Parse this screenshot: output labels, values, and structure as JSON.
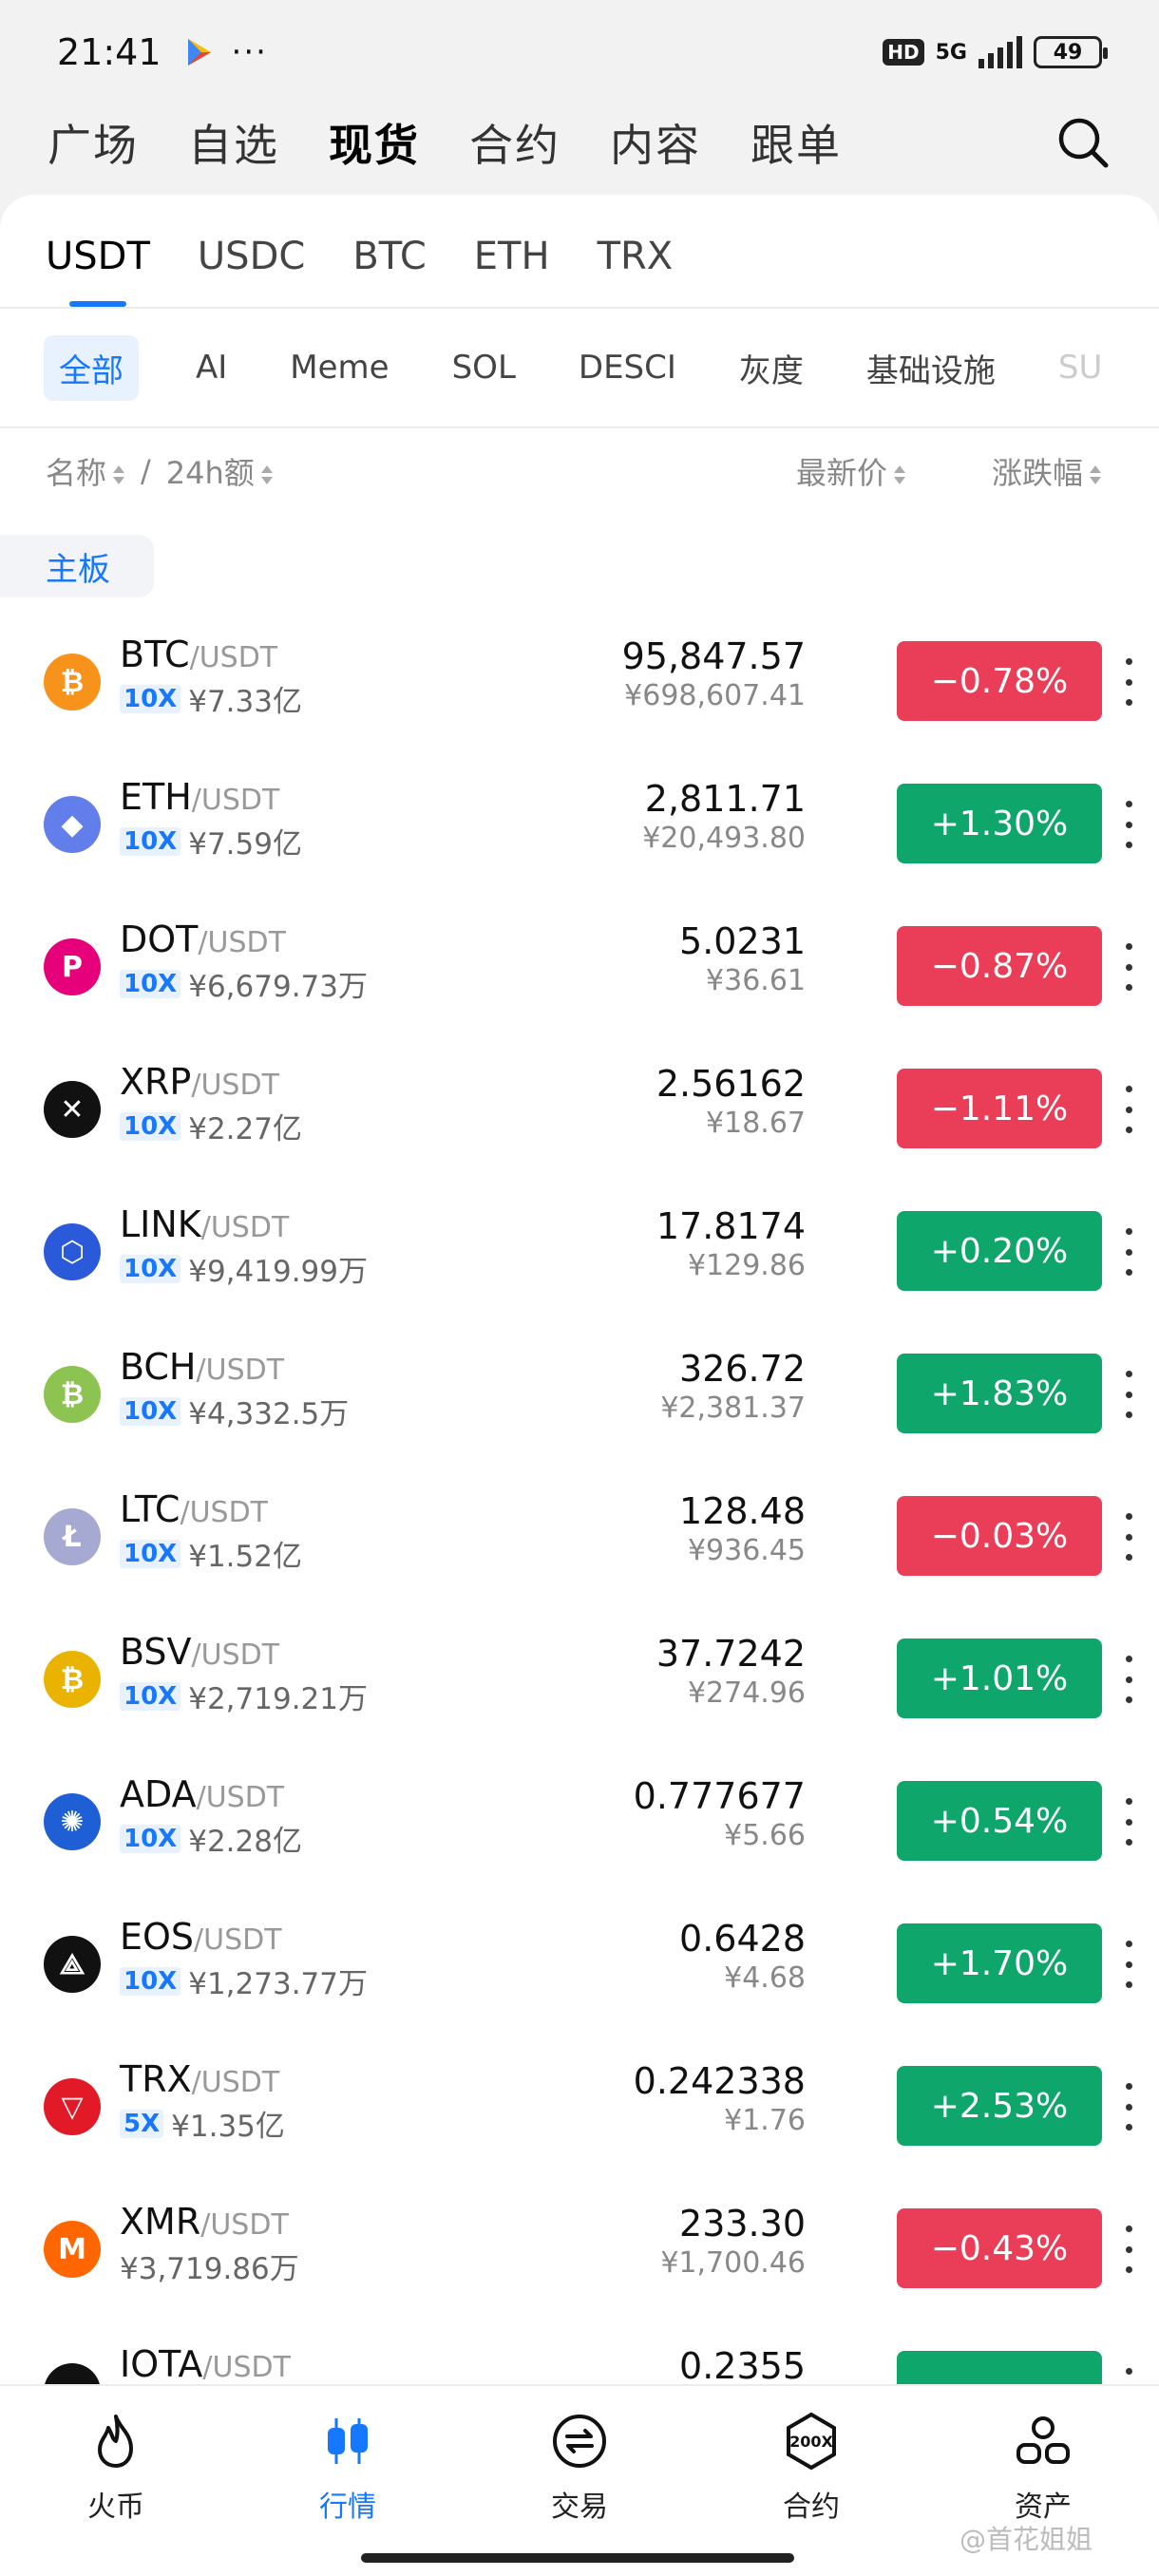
{
  "status": {
    "time": "21:41",
    "dots": "···",
    "hd": "HD",
    "network": "5G",
    "battery": "49"
  },
  "top_nav": [
    "广场",
    "自选",
    "现货",
    "合约",
    "内容",
    "跟单"
  ],
  "quote_tabs": [
    "USDT",
    "USDC",
    "BTC",
    "ETH",
    "TRX"
  ],
  "category_tabs": [
    "全部",
    "AI",
    "Meme",
    "SOL",
    "DESCI",
    "灰度",
    "基础设施",
    "SU"
  ],
  "header": {
    "name": "名称",
    "slash": "/",
    "volume": "24h额",
    "price": "最新价",
    "change": "涨跌幅"
  },
  "board_label": "主板",
  "coins": [
    {
      "symbol": "BTC",
      "quote": "/USDT",
      "leverage": "10X",
      "volume": "¥7.33亿",
      "price": "95,847.57",
      "price_cny": "¥698,607.41",
      "change": "−0.78%",
      "dir": "down",
      "icon_color": "#f7931a",
      "icon_glyph": "₿"
    },
    {
      "symbol": "ETH",
      "quote": "/USDT",
      "leverage": "10X",
      "volume": "¥7.59亿",
      "price": "2,811.71",
      "price_cny": "¥20,493.80",
      "change": "+1.30%",
      "dir": "up",
      "icon_color": "#627eea",
      "icon_glyph": "◆"
    },
    {
      "symbol": "DOT",
      "quote": "/USDT",
      "leverage": "10X",
      "volume": "¥6,679.73万",
      "price": "5.0231",
      "price_cny": "¥36.61",
      "change": "−0.87%",
      "dir": "down",
      "icon_color": "#e6007a",
      "icon_glyph": "P"
    },
    {
      "symbol": "XRP",
      "quote": "/USDT",
      "leverage": "10X",
      "volume": "¥2.27亿",
      "price": "2.56162",
      "price_cny": "¥18.67",
      "change": "−1.11%",
      "dir": "down",
      "icon_color": "#111111",
      "icon_glyph": "✕"
    },
    {
      "symbol": "LINK",
      "quote": "/USDT",
      "leverage": "10X",
      "volume": "¥9,419.99万",
      "price": "17.8174",
      "price_cny": "¥129.86",
      "change": "+0.20%",
      "dir": "up",
      "icon_color": "#2a5ada",
      "icon_glyph": "⬡"
    },
    {
      "symbol": "BCH",
      "quote": "/USDT",
      "leverage": "10X",
      "volume": "¥4,332.5万",
      "price": "326.72",
      "price_cny": "¥2,381.37",
      "change": "+1.83%",
      "dir": "up",
      "icon_color": "#8dc351",
      "icon_glyph": "₿"
    },
    {
      "symbol": "LTC",
      "quote": "/USDT",
      "leverage": "10X",
      "volume": "¥1.52亿",
      "price": "128.48",
      "price_cny": "¥936.45",
      "change": "−0.03%",
      "dir": "down",
      "icon_color": "#a6a9d1",
      "icon_glyph": "Ł"
    },
    {
      "symbol": "BSV",
      "quote": "/USDT",
      "leverage": "10X",
      "volume": "¥2,719.21万",
      "price": "37.7242",
      "price_cny": "¥274.96",
      "change": "+1.01%",
      "dir": "up",
      "icon_color": "#eab300",
      "icon_glyph": "₿"
    },
    {
      "symbol": "ADA",
      "quote": "/USDT",
      "leverage": "10X",
      "volume": "¥2.28亿",
      "price": "0.777677",
      "price_cny": "¥5.66",
      "change": "+0.54%",
      "dir": "up",
      "icon_color": "#1f5fd6",
      "icon_glyph": "✺"
    },
    {
      "symbol": "EOS",
      "quote": "/USDT",
      "leverage": "10X",
      "volume": "¥1,273.77万",
      "price": "0.6428",
      "price_cny": "¥4.68",
      "change": "+1.70%",
      "dir": "up",
      "icon_color": "#111111",
      "icon_glyph": "⟁"
    },
    {
      "symbol": "TRX",
      "quote": "/USDT",
      "leverage": "5X",
      "volume": "¥1.35亿",
      "price": "0.242338",
      "price_cny": "¥1.76",
      "change": "+2.53%",
      "dir": "up",
      "icon_color": "#e21a27",
      "icon_glyph": "▽"
    },
    {
      "symbol": "XMR",
      "quote": "/USDT",
      "leverage": "",
      "volume": "¥3,719.86万",
      "price": "233.30",
      "price_cny": "¥1,700.46",
      "change": "−0.43%",
      "dir": "down",
      "icon_color": "#ff6600",
      "icon_glyph": "M"
    },
    {
      "symbol": "IOTA",
      "quote": "/USDT",
      "leverage": "",
      "volume": "",
      "price": "0.2355",
      "price_cny": "",
      "change": "",
      "dir": "up",
      "icon_color": "#111111",
      "icon_glyph": ""
    }
  ],
  "bottom_nav": [
    {
      "label": "火币",
      "icon": "flame-icon"
    },
    {
      "label": "行情",
      "icon": "candlestick-icon"
    },
    {
      "label": "交易",
      "icon": "swap-icon"
    },
    {
      "label": "合约",
      "icon": "200x-icon"
    },
    {
      "label": "资产",
      "icon": "assets-icon"
    }
  ],
  "watermark": "@首花姐姐",
  "colors": {
    "accent": "#1677ff",
    "up": "#0fa66b",
    "down": "#ea3e58"
  }
}
